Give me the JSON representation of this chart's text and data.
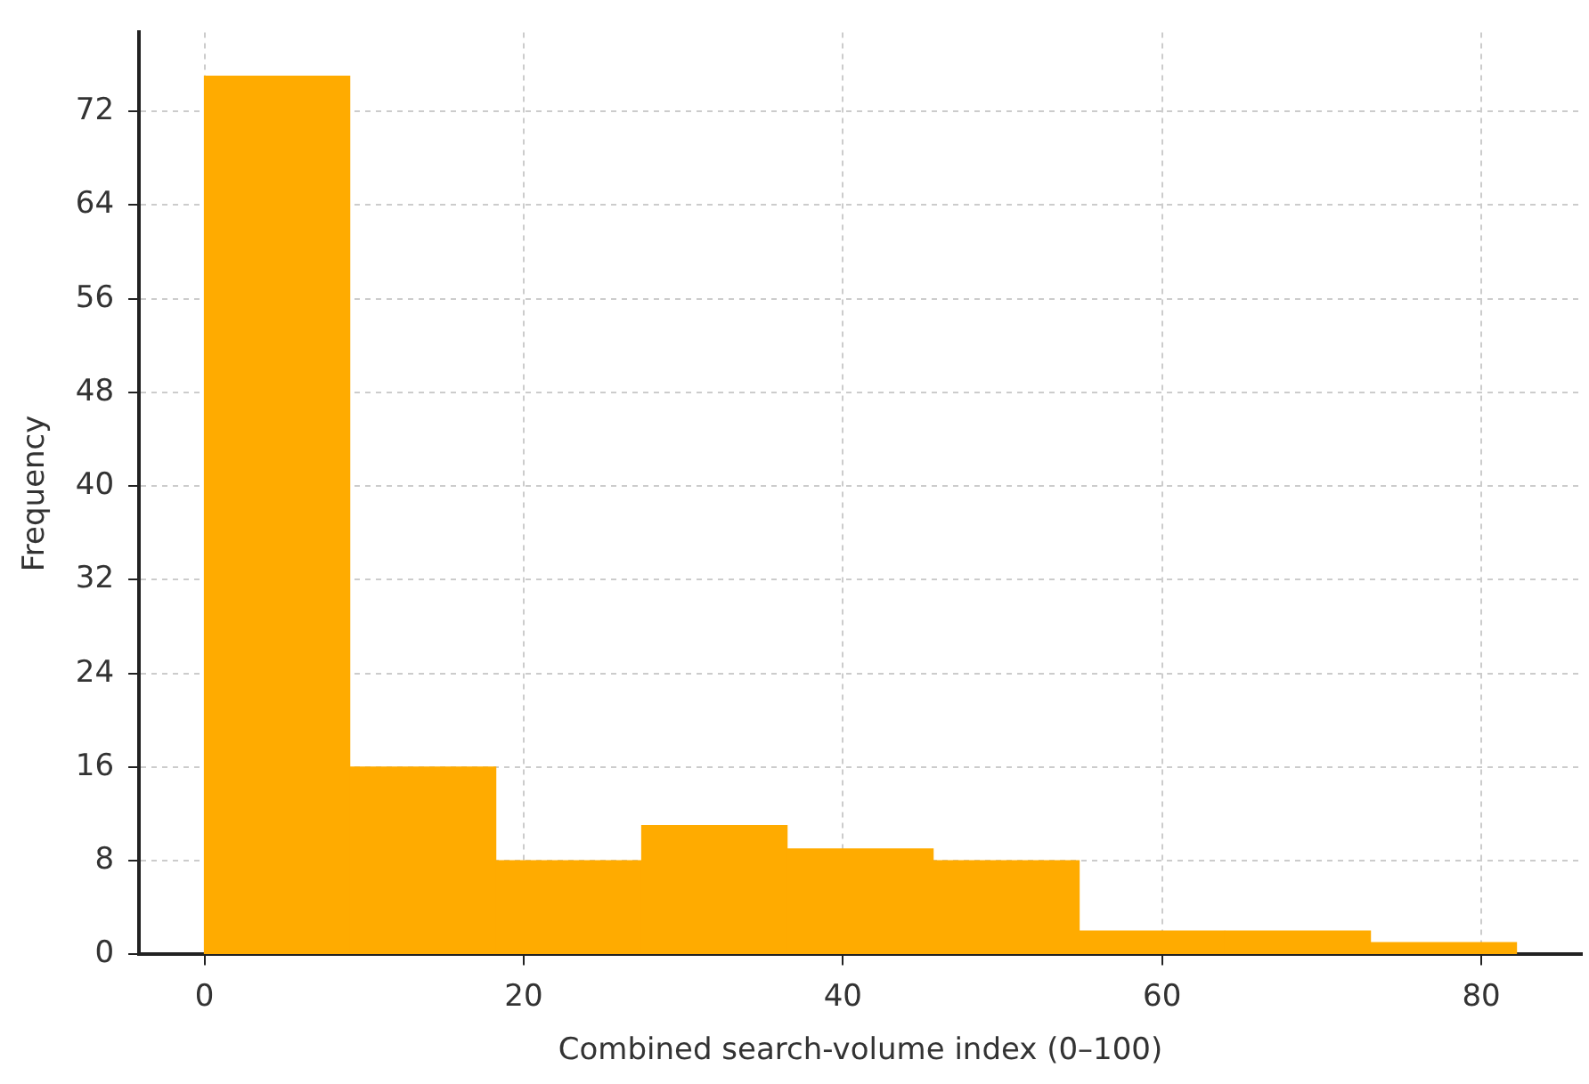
{
  "chart_data": {
    "type": "histogram",
    "xlabel": "Combined search-volume index (0–100)",
    "ylabel": "Frequency",
    "bins": [
      0,
      9.1,
      18.3,
      27.4,
      36.5,
      45.7,
      54.8,
      63.9,
      73.1,
      82.2
    ],
    "values": [
      75,
      16,
      8,
      11,
      9,
      8,
      2,
      2,
      1
    ],
    "color": "#ffab00",
    "xlim": [
      -4.1,
      86.3
    ],
    "xticks": [
      0,
      20,
      40,
      60,
      80
    ],
    "ylim": [
      0,
      78.75
    ],
    "yticks": [
      0,
      8,
      16,
      24,
      32,
      40,
      48,
      56,
      64,
      72
    ],
    "grid": true
  }
}
